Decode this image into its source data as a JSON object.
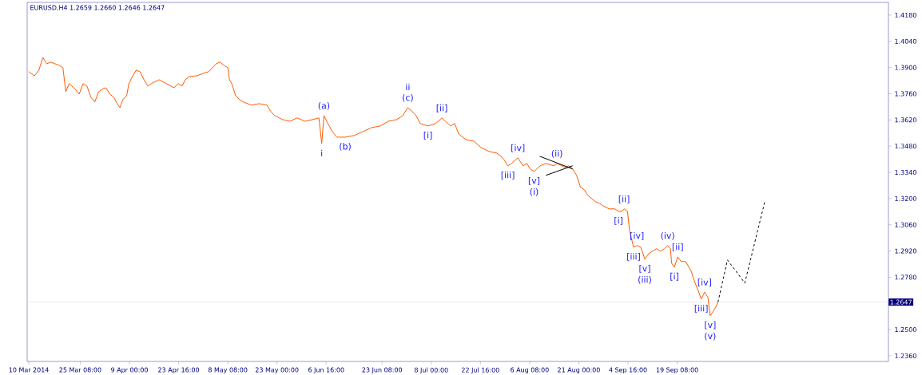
{
  "chart_data": {
    "type": "line",
    "title": "EURUSD,H4  1.2659 1.2660 1.2646 1.2647",
    "xlim": [
      "2014-03-09T12:00",
      "2014-11-21T08:00"
    ],
    "xticks": [
      {
        "value": "2014-03-10T00:00",
        "label": "10 Mar 2014"
      },
      {
        "value": "2014-03-25T08:00",
        "label": "25 Mar 08:00"
      },
      {
        "value": "2014-04-09T00:00",
        "label": "9 Apr 00:00"
      },
      {
        "value": "2014-04-23T16:00",
        "label": "23 Apr 16:00"
      },
      {
        "value": "2014-05-08T08:00",
        "label": "8 May 08:00"
      },
      {
        "value": "2014-05-23T00:00",
        "label": "23 May 00:00"
      },
      {
        "value": "2014-06-06T16:00",
        "label": "6 Jun 16:00"
      },
      {
        "value": "2014-06-23T08:00",
        "label": "23 Jun 08:00"
      },
      {
        "value": "2014-07-08T00:00",
        "label": "8 Jul 00:00"
      },
      {
        "value": "2014-07-22T16:00",
        "label": "22 Jul 16:00"
      },
      {
        "value": "2014-08-06T08:00",
        "label": "6 Aug 08:00"
      },
      {
        "value": "2014-08-21T00:00",
        "label": "21 Aug 00:00"
      },
      {
        "value": "2014-09-04T16:00",
        "label": "4 Sep 16:00"
      },
      {
        "value": "2014-09-19T08:00",
        "label": "19 Sep 08:00"
      }
    ],
    "ylim": [
      1.233,
      1.4248
    ],
    "yticks": [
      {
        "value": 1.236,
        "label": "1.2360"
      },
      {
        "value": 1.25,
        "label": "1.2500"
      },
      {
        "value": 1.278,
        "label": "1.2780"
      },
      {
        "value": 1.292,
        "label": "1.2920"
      },
      {
        "value": 1.306,
        "label": "1.3060"
      },
      {
        "value": 1.32,
        "label": "1.3200"
      },
      {
        "value": 1.334,
        "label": "1.3340"
      },
      {
        "value": 1.348,
        "label": "1.3480"
      },
      {
        "value": 1.362,
        "label": "1.3620"
      },
      {
        "value": 1.376,
        "label": "1.3760"
      },
      {
        "value": 1.39,
        "label": "1.3900"
      },
      {
        "value": 1.404,
        "label": "1.4040"
      },
      {
        "value": 1.418,
        "label": "1.4180"
      }
    ],
    "ref_lines": [
      {
        "axis": "y",
        "value": 1.2647,
        "label": "1.2647",
        "color": "#c8c8c8"
      }
    ],
    "series": [
      {
        "color": "#ff5a00",
        "line_style": "solid",
        "x": [
          "2014-03-10T00:00",
          "2014-03-11T16:00",
          "2014-03-13T00:00",
          "2014-03-14T04:00",
          "2014-03-15T08:00",
          "2014-03-16T12:00",
          "2014-03-17T20:00",
          "2014-03-19T00:00",
          "2014-03-20T04:00",
          "2014-03-21T00:00",
          "2014-03-22T00:00",
          "2014-03-23T20:00",
          "2014-03-25T00:00",
          "2014-03-26T04:00",
          "2014-03-27T08:00",
          "2014-03-28T12:00",
          "2014-03-29T16:00",
          "2014-03-30T20:00",
          "2014-03-31T20:00",
          "2014-04-02T00:00",
          "2014-04-03T04:00",
          "2014-04-04T08:00",
          "2014-04-05T08:00",
          "2014-04-06T04:00",
          "2014-04-07T00:00",
          "2014-04-08T04:00",
          "2014-04-08T20:00",
          "2014-04-10T00:00",
          "2014-04-11T00:00",
          "2014-04-12T04:00",
          "2014-04-13T08:00",
          "2014-04-14T12:00",
          "2014-04-15T12:00",
          "2014-04-17T20:00",
          "2014-04-20T00:00",
          "2014-04-22T08:00",
          "2014-04-23T12:00",
          "2014-04-24T16:00",
          "2014-04-25T16:00",
          "2014-04-26T20:00",
          "2014-04-29T04:00",
          "2014-05-01T00:00",
          "2014-05-02T16:00",
          "2014-05-04T20:00",
          "2014-05-06T00:00",
          "2014-05-07T04:00",
          "2014-05-08T08:00",
          "2014-05-08T20:00",
          "2014-05-09T12:00",
          "2014-05-10T16:00",
          "2014-05-11T20:00",
          "2014-05-13T00:00",
          "2014-05-15T08:00",
          "2014-05-17T16:00",
          "2014-05-20T00:00",
          "2014-05-21T04:00",
          "2014-05-22T08:00",
          "2014-05-24T16:00",
          "2014-05-26T20:00",
          "2014-05-29T00:00",
          "2014-05-31T08:00",
          "2014-06-02T16:00",
          "2014-06-04T12:00",
          "2014-06-05T08:00",
          "2014-06-06T00:00",
          "2014-06-07T04:00",
          "2014-06-08T12:00",
          "2014-06-09T20:00",
          "2014-06-12T08:00",
          "2014-06-15T00:00",
          "2014-06-17T16:00",
          "2014-06-20T04:00",
          "2014-06-22T20:00",
          "2014-06-25T04:00",
          "2014-06-27T16:00",
          "2014-06-29T12:00",
          "2014-07-01T00:00",
          "2014-07-02T08:00",
          "2014-07-03T12:00",
          "2014-07-04T16:00",
          "2014-07-07T00:00",
          "2014-07-09T08:00",
          "2014-07-11T04:00",
          "2014-07-12T04:00",
          "2014-07-13T20:00",
          "2014-07-15T00:00",
          "2014-07-16T04:00",
          "2014-07-18T08:00",
          "2014-07-20T16:00",
          "2014-07-22T20:00",
          "2014-07-25T04:00",
          "2014-07-27T12:00",
          "2014-07-28T12:00",
          "2014-07-29T16:00",
          "2014-07-30T20:00",
          "2014-08-01T00:00",
          "2014-08-02T20:00",
          "2014-08-04T08:00",
          "2014-08-05T12:00",
          "2014-08-06T12:00",
          "2014-08-07T16:00",
          "2014-08-09T12:00",
          "2014-08-11T04:00",
          "2014-08-13T12:00",
          "2014-08-14T12:00",
          "2014-08-16T20:00",
          "2014-08-18T00:00",
          "2014-08-19T04:00",
          "2014-08-20T08:00",
          "2014-08-21T12:00",
          "2014-08-22T16:00",
          "2014-08-23T16:00",
          "2014-08-26T00:00",
          "2014-08-27T04:00",
          "2014-08-28T04:00",
          "2014-08-30T00:00",
          "2014-08-31T16:00",
          "2014-09-01T20:00",
          "2014-09-02T20:00",
          "2014-09-03T12:00",
          "2014-09-04T12:00",
          "2014-09-05T04:00",
          "2014-09-06T08:00",
          "2014-09-07T08:00",
          "2014-09-08T12:00",
          "2014-09-09T16:00",
          "2014-09-10T20:00",
          "2014-09-12T00:00",
          "2014-09-13T04:00",
          "2014-09-14T08:00",
          "2014-09-15T12:00",
          "2014-09-16T12:00",
          "2014-09-17T08:00",
          "2014-09-17T16:00",
          "2014-09-18T12:00",
          "2014-09-19T12:00",
          "2014-09-20T12:00",
          "2014-09-21T20:00",
          "2014-09-23T12:00",
          "2014-09-24T16:00",
          "2014-09-25T16:00",
          "2014-09-26T12:00",
          "2014-09-27T12:00",
          "2014-09-28T12:00",
          "2014-09-29T04:00",
          "2014-09-30T04:00",
          "2014-09-30T20:00",
          "2014-10-01T12:00"
        ],
        "values": [
          1.3878,
          1.3856,
          1.3886,
          1.3954,
          1.392,
          1.3929,
          1.392,
          1.3912,
          1.3899,
          1.3771,
          1.3814,
          1.3784,
          1.3758,
          1.3814,
          1.3801,
          1.3741,
          1.3716,
          1.3771,
          1.3784,
          1.3792,
          1.3758,
          1.3741,
          1.3707,
          1.3686,
          1.3728,
          1.375,
          1.3814,
          1.3856,
          1.3886,
          1.3878,
          1.3835,
          1.3801,
          1.3814,
          1.3835,
          1.3814,
          1.3792,
          1.3814,
          1.3801,
          1.3835,
          1.3852,
          1.3856,
          1.3869,
          1.3878,
          1.392,
          1.3929,
          1.3912,
          1.3899,
          1.3835,
          1.3814,
          1.375,
          1.3728,
          1.3716,
          1.3699,
          1.3707,
          1.3699,
          1.3665,
          1.3643,
          1.3622,
          1.3613,
          1.3631,
          1.3613,
          1.3622,
          1.3631,
          1.3494,
          1.3643,
          1.3601,
          1.3558,
          1.3528,
          1.3528,
          1.3537,
          1.3558,
          1.3579,
          1.3588,
          1.3613,
          1.3622,
          1.3643,
          1.3686,
          1.3665,
          1.3643,
          1.3601,
          1.3588,
          1.3601,
          1.3631,
          1.3613,
          1.3588,
          1.3601,
          1.3545,
          1.3515,
          1.3507,
          1.3473,
          1.3452,
          1.3443,
          1.343,
          1.3409,
          1.3375,
          1.3388,
          1.3418,
          1.3375,
          1.3388,
          1.3358,
          1.3345,
          1.3375,
          1.3388,
          1.3375,
          1.3388,
          1.3367,
          1.3375,
          1.3358,
          1.3324,
          1.326,
          1.3247,
          1.3217,
          1.3183,
          1.3175,
          1.3162,
          1.3145,
          1.3145,
          1.3132,
          1.3132,
          1.3145,
          1.3132,
          1.3026,
          1.294,
          1.2949,
          1.294,
          1.2876,
          1.2906,
          1.2919,
          1.2932,
          1.2919,
          1.2932,
          1.2949,
          1.2932,
          1.2855,
          1.2834,
          1.2889,
          1.2864,
          1.2864,
          1.2813,
          1.2749,
          1.2706,
          1.2663,
          1.27,
          1.2672,
          1.2575,
          1.26,
          1.2621,
          1.2647
        ]
      },
      {
        "color": "#000000",
        "line_style": "dashed",
        "x": [
          "2014-10-01T12:00",
          "2014-10-04T08:00",
          "2014-10-09T12:00",
          "2014-10-15T12:00"
        ],
        "values": [
          1.2647,
          1.2872,
          1.2749,
          1.3187
        ]
      },
      {
        "color": "#000000",
        "line_style": "solid",
        "x": [
          "2014-08-09T08:00",
          "2014-08-19T04:00"
        ],
        "values": [
          1.3426,
          1.3358
        ]
      },
      {
        "color": "#000000",
        "line_style": "solid",
        "x": [
          "2014-08-11T04:00",
          "2014-08-19T04:00"
        ],
        "values": [
          1.3324,
          1.3375
        ]
      }
    ],
    "annotations": [
      {
        "text": "i",
        "x": "2014-06-05T08:00",
        "y": 1.3494
      },
      {
        "text": "(a)",
        "x": "2014-06-06T00:00",
        "y": 1.3643
      },
      {
        "text": "(b)",
        "x": "2014-06-12T08:00",
        "y": 1.3528
      },
      {
        "text": "(c)",
        "x": "2014-07-01T00:00",
        "y": 1.3686
      },
      {
        "text": "ii",
        "x": "2014-07-01T00:00",
        "y": 1.3686
      },
      {
        "text": "[i]",
        "x": "2014-07-07T00:00",
        "y": 1.3588
      },
      {
        "text": "[ii]",
        "x": "2014-07-11T04:00",
        "y": 1.3631
      },
      {
        "text": "[iii]",
        "x": "2014-07-30T20:00",
        "y": 1.3375
      },
      {
        "text": "[iv]",
        "x": "2014-08-02T20:00",
        "y": 1.3418
      },
      {
        "text": "[v]",
        "x": "2014-08-07T16:00",
        "y": 1.3345
      },
      {
        "text": "(i)",
        "x": "2014-08-07T16:00",
        "y": 1.3345
      },
      {
        "text": "(ii)",
        "x": "2014-08-14T12:00",
        "y": 1.3388
      },
      {
        "text": "[i]",
        "x": "2014-09-01T20:00",
        "y": 1.3132
      },
      {
        "text": "[ii]",
        "x": "2014-09-03T12:00",
        "y": 1.3145
      },
      {
        "text": "[iii]",
        "x": "2014-09-06T08:00",
        "y": 1.294
      },
      {
        "text": "[iv]",
        "x": "2014-09-07T08:00",
        "y": 1.2949
      },
      {
        "text": "[v]",
        "x": "2014-09-09T16:00",
        "y": 1.2876
      },
      {
        "text": "(iii)",
        "x": "2014-09-09T16:00",
        "y": 1.2876
      },
      {
        "text": "(iv)",
        "x": "2014-09-16T12:00",
        "y": 1.2949
      },
      {
        "text": "[i]",
        "x": "2014-09-18T12:00",
        "y": 1.2834
      },
      {
        "text": "[ii]",
        "x": "2014-09-19T12:00",
        "y": 1.2889
      },
      {
        "text": "[iii]",
        "x": "2014-09-26T12:00",
        "y": 1.2663
      },
      {
        "text": "[iv]",
        "x": "2014-09-27T12:00",
        "y": 1.27
      },
      {
        "text": "[v]",
        "x": "2014-09-29T04:00",
        "y": 1.2575
      },
      {
        "text": "(v)",
        "x": "2014-09-29T04:00",
        "y": 1.2575
      }
    ]
  }
}
